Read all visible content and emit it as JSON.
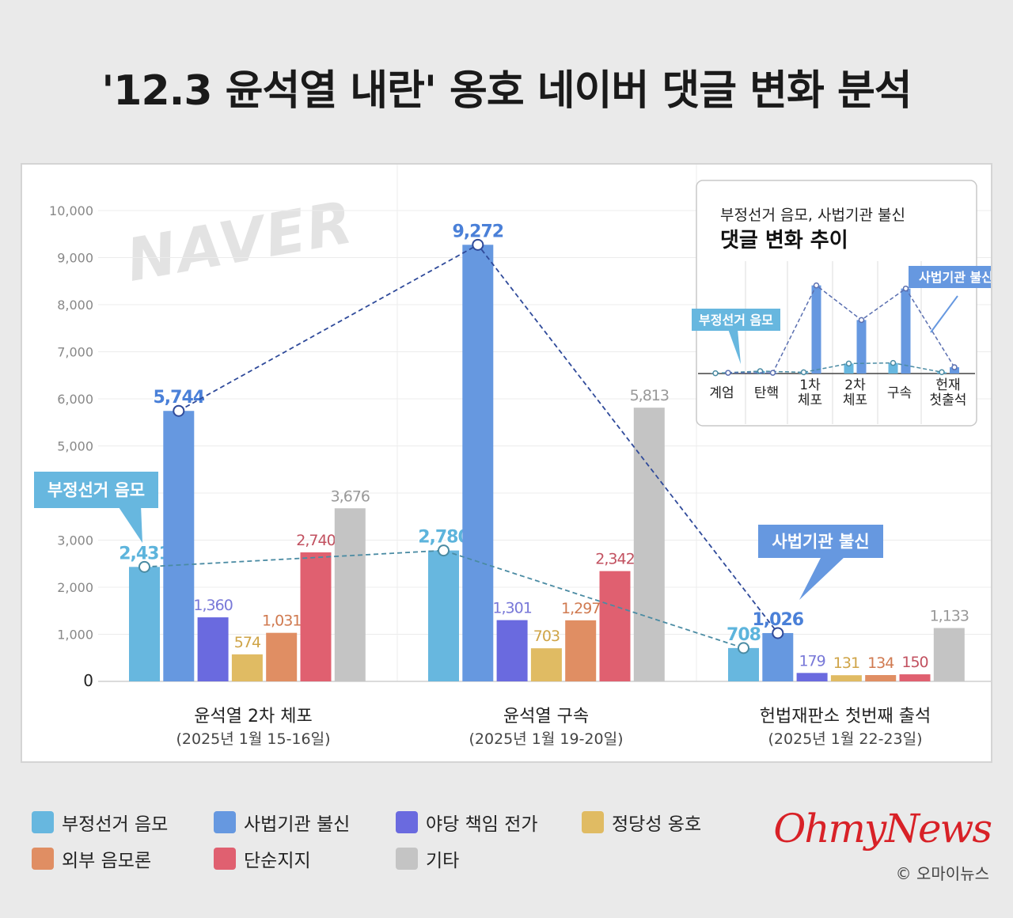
{
  "title": "'12.3 윤석열 내란' 옹호 네이버 댓글 변화 분석",
  "watermark": "NAVER",
  "colors": {
    "부정선거 음모": "#67b7df",
    "사법기관 불신": "#6698e0",
    "야당 책임 전가": "#6a6adf",
    "정당성 옹호": "#e0bb63",
    "외부 음모론": "#e08e63",
    "단순지지": "#e06070",
    "기타": "#c4c4c4"
  },
  "label_colors": {
    "부정선거 음모": "#5db4dc",
    "사법기관 불신": "#4a80d8",
    "야당 책임 전가": "#7878d8",
    "정당성 옹호": "#cfa447",
    "외부 음모론": "#d07a50",
    "단순지지": "#c25160",
    "기타": "#999999"
  },
  "chart_data": [
    {
      "type": "bar",
      "categories": [
        "윤석열 2차 체포",
        "윤석열 구속",
        "헌법재판소 첫번째 출석"
      ],
      "category_dates": [
        "(2025년 1월 15-16일)",
        "(2025년 1월 19-20일)",
        "(2025년 1월 22-23일)"
      ],
      "series": [
        {
          "name": "부정선거 음모",
          "values": [
            2431,
            2780,
            708
          ]
        },
        {
          "name": "사법기관 불신",
          "values": [
            5744,
            9272,
            1026
          ]
        },
        {
          "name": "야당 책임 전가",
          "values": [
            1360,
            1301,
            179
          ]
        },
        {
          "name": "정당성 옹호",
          "values": [
            574,
            703,
            131
          ]
        },
        {
          "name": "외부 음모론",
          "values": [
            1031,
            1297,
            134
          ]
        },
        {
          "name": "단순지지",
          "values": [
            2740,
            2342,
            150
          ]
        },
        {
          "name": "기타",
          "values": [
            3676,
            5813,
            1133
          ]
        }
      ],
      "value_labels": {
        "부정선거 음모": [
          "2,431",
          "2,780",
          "708"
        ],
        "사법기관 불신": [
          "5,744",
          "9,272",
          "1,026"
        ],
        "야당 책임 전가": [
          "1,360",
          "1,301",
          "179"
        ],
        "정당성 옹호": [
          "574",
          "703",
          "131"
        ],
        "외부 음모론": [
          "1,031",
          "1,297",
          "134"
        ],
        "단순지지": [
          "2,740",
          "2,342",
          "150"
        ],
        "기타": [
          "3,676",
          "5,813",
          "1,133"
        ]
      },
      "ylim": [
        0,
        10000
      ],
      "yticks": [
        0,
        1000,
        2000,
        3000,
        4000,
        5000,
        6000,
        7000,
        8000,
        9000,
        10000
      ],
      "ytick_labels": [
        "0",
        "1,000",
        "2,000",
        "3,000",
        "4,000",
        "5,000",
        "6,000",
        "7,000",
        "8,000",
        "9,000",
        "10,000"
      ],
      "trend_lines": [
        "부정선거 음모",
        "사법기관 불신"
      ],
      "callouts": [
        "부정선거 음모",
        "사법기관 불신"
      ],
      "grid": true
    },
    {
      "type": "bar",
      "title_line1": "부정선거 음모, 사법기관 불신",
      "title_line2": "댓글 변화 추이",
      "categories": [
        [
          "계엄"
        ],
        [
          "탄핵"
        ],
        [
          "1차",
          "체포"
        ],
        [
          "2차",
          "체포"
        ],
        [
          "구속"
        ],
        [
          "헌재",
          "첫출석"
        ]
      ],
      "series": [
        {
          "name": "부정선거 음모",
          "values": [
            30,
            230,
            120,
            950,
            1010,
            130
          ]
        },
        {
          "name": "사법기관 불신",
          "values": [
            70,
            70,
            8400,
            5100,
            8100,
            600
          ]
        }
      ],
      "ylim": [
        0,
        9200
      ],
      "callouts": [
        "부정선거 음모",
        "사법기관 불신"
      ]
    }
  ],
  "legend": [
    "부정선거 음모",
    "사법기관 불신",
    "야당 책임 전가",
    "정당성 옹호",
    "외부 음모론",
    "단순지지",
    "기타"
  ],
  "brand": "OhmyNews",
  "copyright": "© 오마이뉴스"
}
